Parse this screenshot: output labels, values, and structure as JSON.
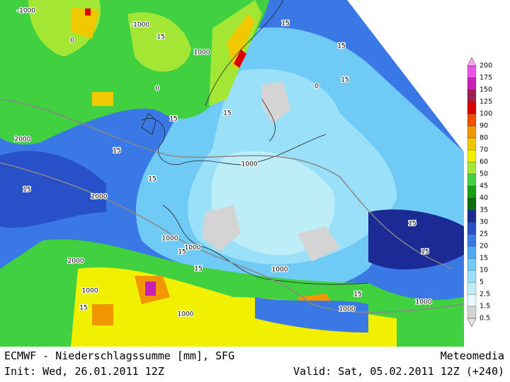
{
  "map": {
    "contour_labels": [
      "-1000",
      "-1000",
      "15",
      "0",
      "1000",
      "15",
      "15",
      "15",
      "0",
      "0",
      "15",
      "15",
      "2000",
      "15",
      "1000",
      "15",
      "15",
      "2000",
      "1000",
      "1000",
      "15",
      "15",
      "15",
      "2000",
      "1000",
      "15",
      "1000",
      "15",
      "15",
      "1000",
      "1000",
      "1000"
    ],
    "legend": {
      "levels": [
        0.5,
        1.5,
        2.5,
        5,
        10,
        15,
        20,
        25,
        30,
        35,
        40,
        45,
        50,
        60,
        70,
        80,
        90,
        100,
        125,
        150,
        175,
        200
      ],
      "colors": [
        "#d4d4d4",
        "#eaf8fc",
        "#bdeef8",
        "#9ae0f8",
        "#70caf6",
        "#4ea8f0",
        "#3a78e6",
        "#2850c8",
        "#1c2a96",
        "#0c6e0c",
        "#16a016",
        "#40d040",
        "#a4e634",
        "#f0f000",
        "#f0c800",
        "#f09600",
        "#f05000",
        "#dc0000",
        "#a01e50",
        "#c81eb4",
        "#f050e6"
      ],
      "under_color": "#e4e4e4",
      "over_color": "#f4a8f4"
    }
  },
  "footer": {
    "title": "ECMWF - Niederschlagssumme [mm], SFG",
    "brand": "Meteomedia",
    "init": "Init: Wed, 26.01.2011 12Z",
    "valid": "Valid: Sat, 05.02.2011 12Z (+240)"
  }
}
